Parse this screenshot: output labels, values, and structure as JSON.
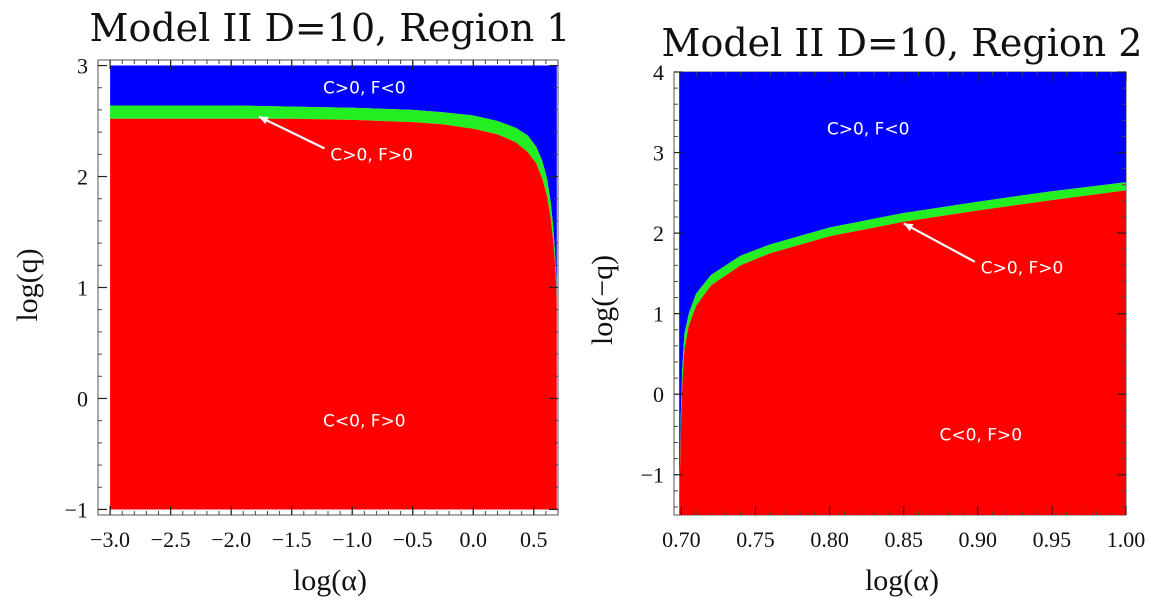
{
  "colors": {
    "blue": "#0000ff",
    "green": "#22ee22",
    "red": "#ff0000",
    "frame": "#555555",
    "annot": "#ffffff"
  },
  "chart_data": [
    {
      "type": "area",
      "title": "Model II D=10, Region 1",
      "xlabel": "log(α)",
      "ylabel": "log(q)",
      "xlim": [
        -3.1,
        0.7
      ],
      "ylim": [
        -1.05,
        3.05
      ],
      "xticks": [
        "-3.0",
        "-2.5",
        "-2.0",
        "-1.5",
        "-1.0",
        "-0.5",
        "0.0",
        "0.5"
      ],
      "xtick_values": [
        -3.0,
        -2.5,
        -2.0,
        -1.5,
        -1.0,
        -0.5,
        0.0,
        0.5
      ],
      "yticks": [
        "-1",
        "0",
        "1",
        "2",
        "3"
      ],
      "ytick_values": [
        -1,
        0,
        1,
        2,
        3
      ],
      "regions": [
        {
          "label": "C>0, F<0",
          "color": "blue"
        },
        {
          "label": "C>0, F>0",
          "color": "green"
        },
        {
          "label": "C<0, F>0",
          "color": "red"
        }
      ],
      "data_range": {
        "x": [
          -3.0,
          0.69
        ],
        "y": [
          -1.0,
          3.0
        ]
      },
      "boundary_lower": {
        "x": [
          -3.0,
          -2.5,
          -2.0,
          -1.5,
          -1.0,
          -0.5,
          -0.25,
          0.0,
          0.2,
          0.35,
          0.45,
          0.52,
          0.57,
          0.61,
          0.64,
          0.66,
          0.675,
          0.685,
          0.69
        ],
        "y": [
          2.52,
          2.52,
          2.52,
          2.52,
          2.51,
          2.49,
          2.47,
          2.43,
          2.38,
          2.31,
          2.22,
          2.12,
          1.98,
          1.82,
          1.62,
          1.42,
          1.22,
          1.02,
          0.85
        ]
      },
      "boundary_upper": {
        "x": [
          -3.0,
          -2.5,
          -2.0,
          -1.5,
          -1.0,
          -0.5,
          -0.25,
          0.0,
          0.2,
          0.35,
          0.45,
          0.52,
          0.57,
          0.61,
          0.64,
          0.66,
          0.675,
          0.685,
          0.69
        ],
        "y": [
          2.64,
          2.64,
          2.64,
          2.63,
          2.62,
          2.6,
          2.58,
          2.55,
          2.5,
          2.44,
          2.37,
          2.27,
          2.14,
          1.98,
          1.77,
          1.55,
          1.32,
          1.1,
          0.9
        ]
      },
      "annotations": [
        {
          "text": "C>0, F<0",
          "x": -0.9,
          "y": 2.8
        },
        {
          "text": "C>0, F>0",
          "x": -1.18,
          "y": 2.2,
          "arrow_to": [
            -1.77,
            2.54
          ]
        },
        {
          "text": "C<0, F>0",
          "x": -0.9,
          "y": -0.2
        }
      ]
    },
    {
      "type": "area",
      "title": "Model II D=10, Region 2",
      "xlabel": "log(α)",
      "ylabel": "log(−q)",
      "xlim": [
        0.695,
        1.0
      ],
      "ylim": [
        -1.5,
        4.0
      ],
      "xticks": [
        "0.70",
        "0.75",
        "0.80",
        "0.85",
        "0.90",
        "0.95",
        "1.00"
      ],
      "xtick_values": [
        0.7,
        0.75,
        0.8,
        0.85,
        0.9,
        0.95,
        1.0
      ],
      "yticks": [
        "-1",
        "0",
        "1",
        "2",
        "3",
        "4"
      ],
      "ytick_values": [
        -1,
        0,
        1,
        2,
        3,
        4
      ],
      "regions": [
        {
          "label": "C>0, F<0",
          "color": "blue"
        },
        {
          "label": "C>0, F>0",
          "color": "green"
        },
        {
          "label": "C<0, F>0",
          "color": "red"
        }
      ],
      "data_range": {
        "x": [
          0.6985,
          1.0
        ],
        "y": [
          -1.5,
          4.0
        ]
      },
      "boundary_lower": {
        "x": [
          0.6985,
          0.6995,
          0.7005,
          0.702,
          0.705,
          0.71,
          0.72,
          0.74,
          0.76,
          0.8,
          0.85,
          0.9,
          0.95,
          1.0
        ],
        "y": [
          -1.5,
          -0.5,
          0.1,
          0.55,
          0.85,
          1.1,
          1.35,
          1.6,
          1.75,
          1.96,
          2.14,
          2.28,
          2.41,
          2.53
        ]
      },
      "boundary_upper": {
        "x": [
          0.6985,
          0.6995,
          0.7005,
          0.702,
          0.705,
          0.71,
          0.72,
          0.74,
          0.76,
          0.8,
          0.85,
          0.9,
          0.95,
          1.0
        ],
        "y": [
          -1.5,
          -0.3,
          0.3,
          0.75,
          1.0,
          1.25,
          1.48,
          1.72,
          1.86,
          2.07,
          2.25,
          2.39,
          2.52,
          2.63
        ]
      },
      "annotations": [
        {
          "text": "C>0, F<0",
          "x": 0.826,
          "y": 3.3
        },
        {
          "text": "C>0, F>0",
          "x": 0.902,
          "y": 1.57,
          "arrow_to": [
            0.85,
            2.12
          ]
        },
        {
          "text": "C<0, F>0",
          "x": 0.902,
          "y": -0.5
        }
      ]
    }
  ]
}
